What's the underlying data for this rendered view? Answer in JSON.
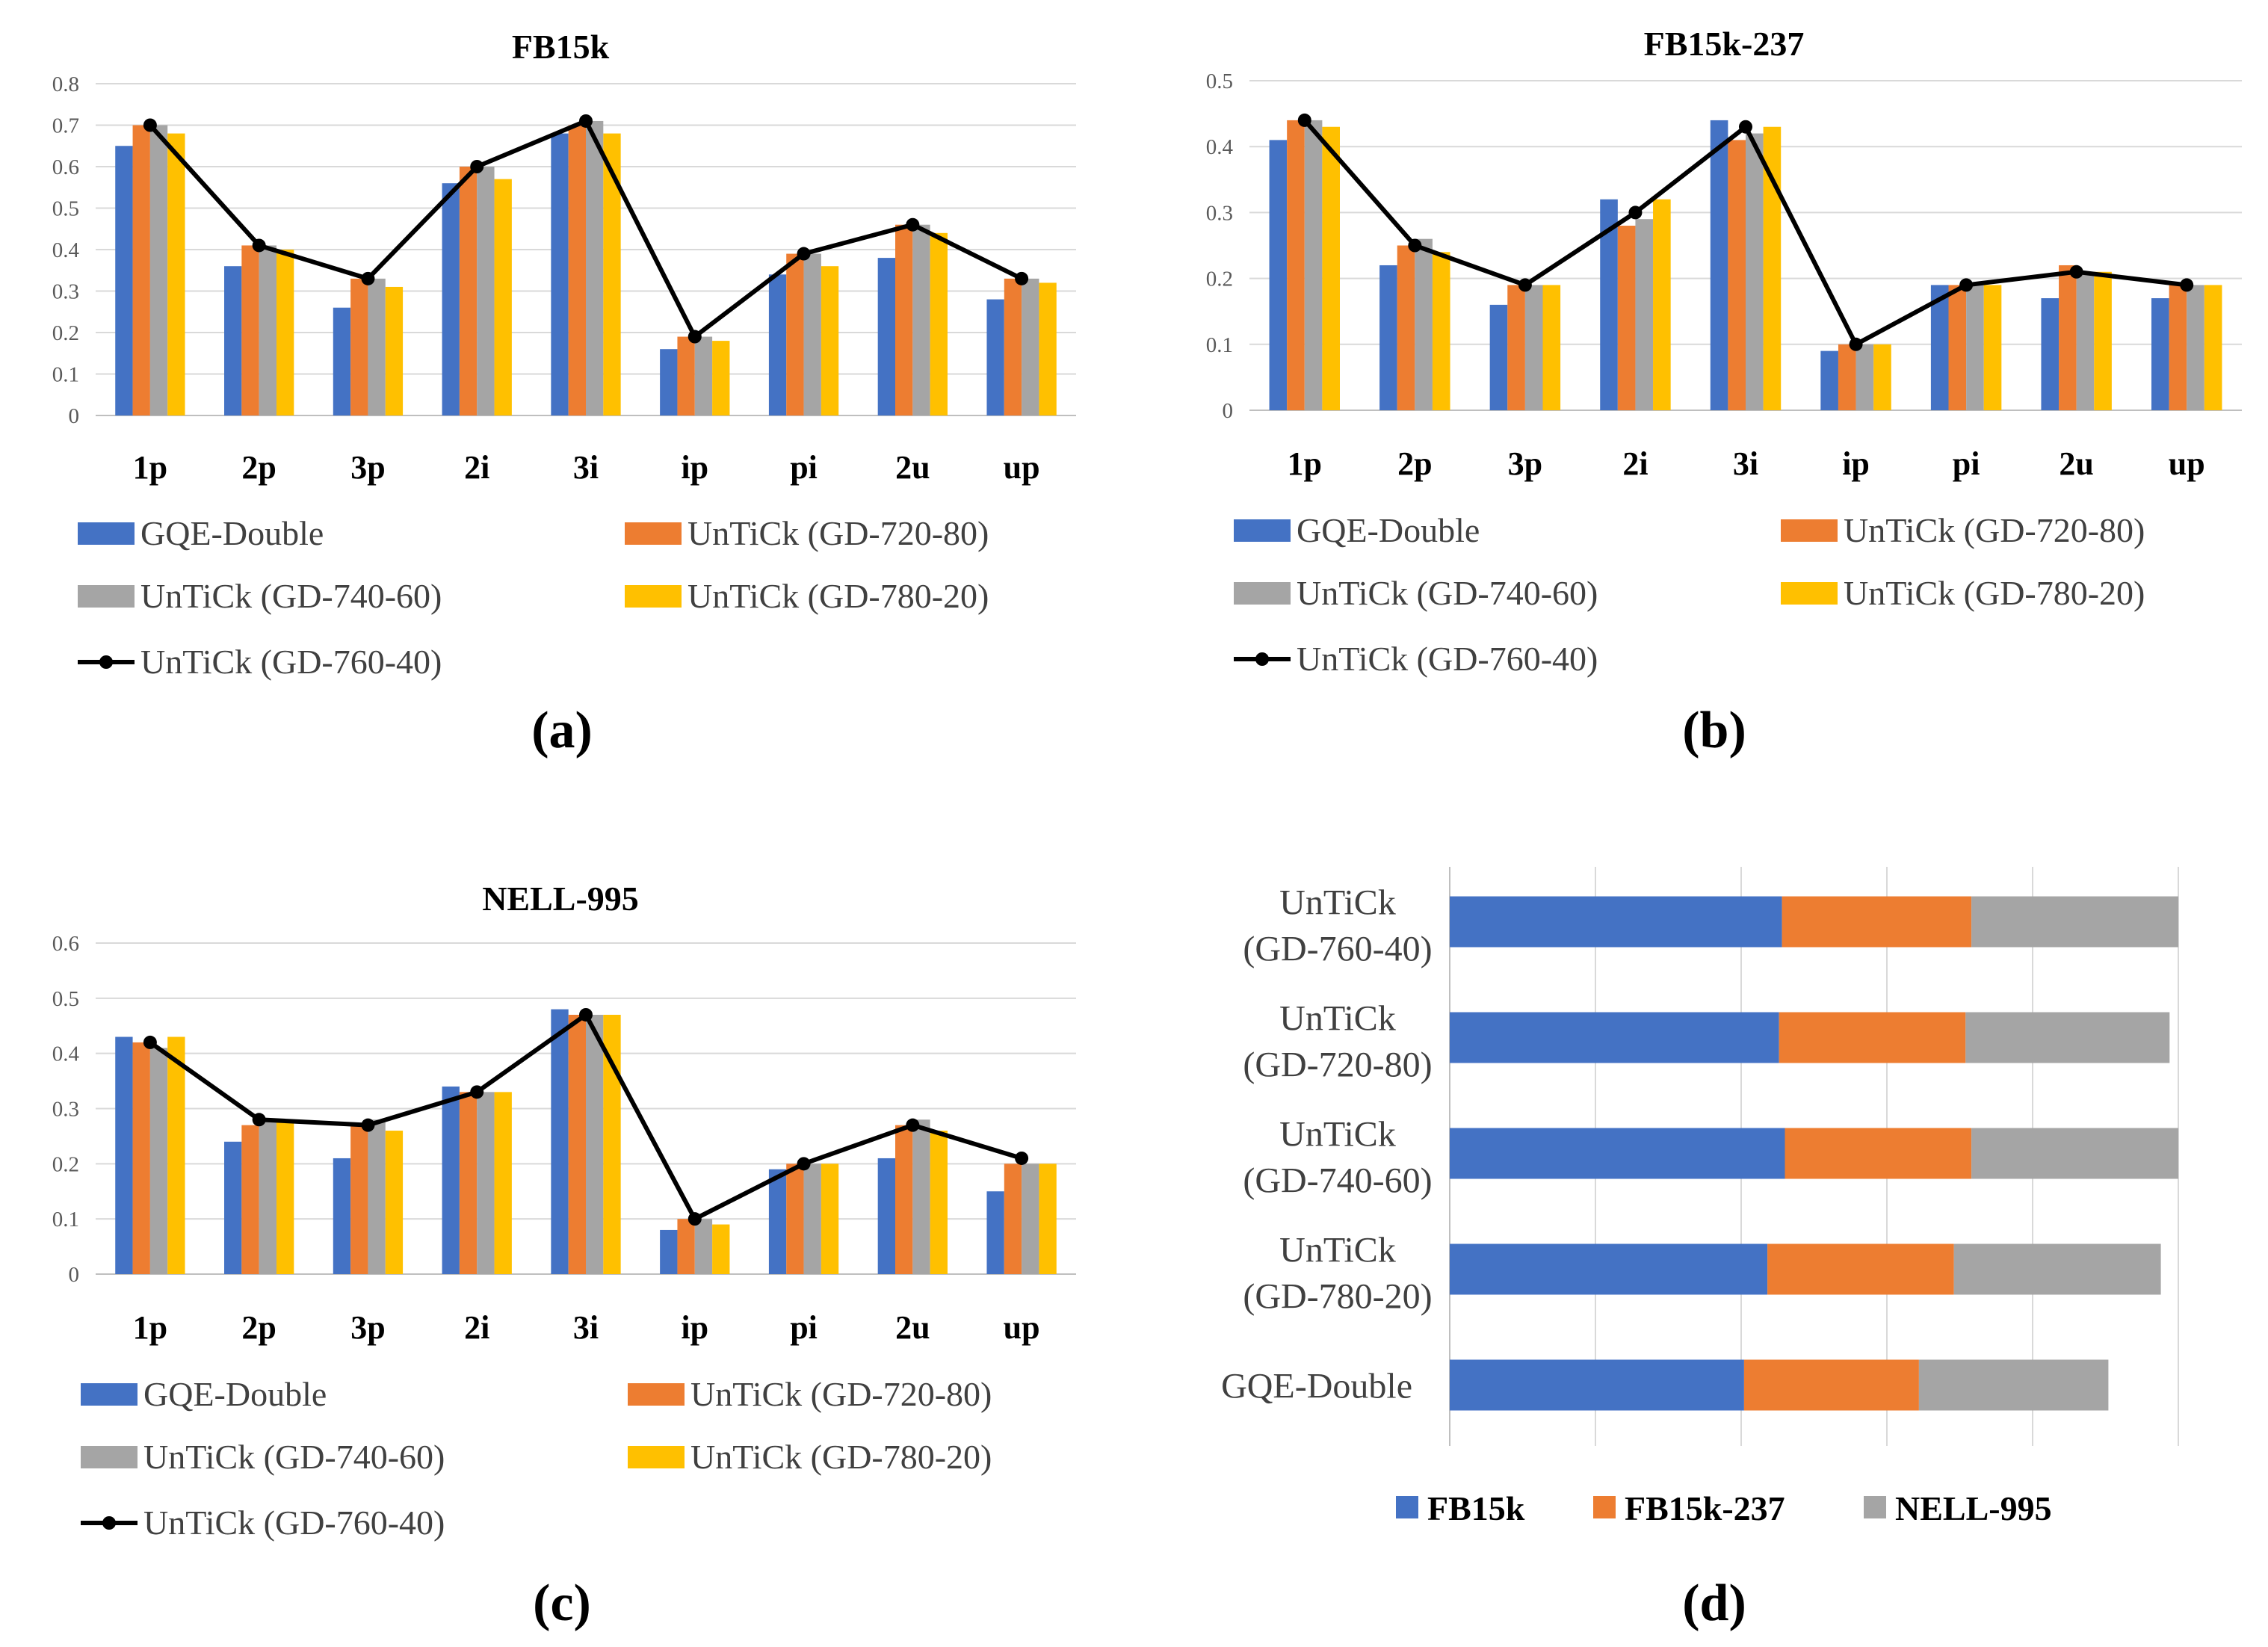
{
  "colors": {
    "gqe": "#4472C4",
    "g72080": "#ED7D31",
    "g74060": "#A5A5A5",
    "g78020": "#FFC000",
    "g76040": "#000000",
    "fb15k": "#4472C4",
    "fb15k237": "#ED7D31",
    "nell": "#A5A5A5",
    "grid": "#D9D9D9",
    "axis": "#BFBFBF"
  },
  "chart_data": [
    {
      "type": "bar",
      "panel": "(a)",
      "title": "FB15k",
      "categories": [
        "1p",
        "2p",
        "3p",
        "2i",
        "3i",
        "ip",
        "pi",
        "2u",
        "up"
      ],
      "ylim": [
        0,
        0.8
      ],
      "yticks": [
        "0",
        "0.1",
        "0.2",
        "0.3",
        "0.4",
        "0.5",
        "0.6",
        "0.7",
        "0.8"
      ],
      "series": [
        {
          "name": "GQE-Double",
          "values": [
            0.65,
            0.36,
            0.26,
            0.56,
            0.68,
            0.16,
            0.34,
            0.38,
            0.28
          ]
        },
        {
          "name": "UnTiCk (GD-720-80)",
          "values": [
            0.7,
            0.41,
            0.33,
            0.6,
            0.7,
            0.19,
            0.39,
            0.46,
            0.33
          ]
        },
        {
          "name": "UnTiCk (GD-740-60)",
          "values": [
            0.7,
            0.41,
            0.33,
            0.6,
            0.71,
            0.19,
            0.39,
            0.46,
            0.33
          ]
        },
        {
          "name": "UnTiCk (GD-780-20)",
          "values": [
            0.68,
            0.4,
            0.31,
            0.57,
            0.68,
            0.18,
            0.36,
            0.44,
            0.32
          ]
        }
      ],
      "line": {
        "name": "UnTiCk (GD-760-40)",
        "values": [
          0.7,
          0.41,
          0.33,
          0.6,
          0.71,
          0.19,
          0.39,
          0.46,
          0.33
        ]
      }
    },
    {
      "type": "bar",
      "panel": "(b)",
      "title": "FB15k-237",
      "categories": [
        "1p",
        "2p",
        "3p",
        "2i",
        "3i",
        "ip",
        "pi",
        "2u",
        "up"
      ],
      "ylim": [
        0,
        0.5
      ],
      "yticks": [
        "0",
        "0.1",
        "0.2",
        "0.3",
        "0.4",
        "0.5"
      ],
      "series": [
        {
          "name": "GQE-Double",
          "values": [
            0.41,
            0.22,
            0.16,
            0.32,
            0.44,
            0.09,
            0.19,
            0.17,
            0.17
          ]
        },
        {
          "name": "UnTiCk (GD-720-80)",
          "values": [
            0.44,
            0.25,
            0.19,
            0.28,
            0.41,
            0.1,
            0.19,
            0.22,
            0.19
          ]
        },
        {
          "name": "UnTiCk (GD-740-60)",
          "values": [
            0.44,
            0.26,
            0.19,
            0.29,
            0.42,
            0.1,
            0.19,
            0.21,
            0.19
          ]
        },
        {
          "name": "UnTiCk (GD-780-20)",
          "values": [
            0.43,
            0.24,
            0.19,
            0.32,
            0.43,
            0.1,
            0.19,
            0.21,
            0.19
          ]
        }
      ],
      "line": {
        "name": "UnTiCk (GD-760-40)",
        "values": [
          0.44,
          0.25,
          0.19,
          0.3,
          0.43,
          0.1,
          0.19,
          0.21,
          0.19
        ]
      }
    },
    {
      "type": "bar",
      "panel": "(c)",
      "title": "NELL-995",
      "categories": [
        "1p",
        "2p",
        "3p",
        "2i",
        "3i",
        "ip",
        "pi",
        "2u",
        "up"
      ],
      "ylim": [
        0,
        0.6
      ],
      "yticks": [
        "0",
        "0.1",
        "0.2",
        "0.3",
        "0.4",
        "0.5",
        "0.6"
      ],
      "series": [
        {
          "name": "GQE-Double",
          "values": [
            0.43,
            0.24,
            0.21,
            0.34,
            0.48,
            0.08,
            0.19,
            0.21,
            0.15
          ]
        },
        {
          "name": "UnTiCk (GD-720-80)",
          "values": [
            0.42,
            0.27,
            0.27,
            0.33,
            0.47,
            0.1,
            0.2,
            0.27,
            0.2
          ]
        },
        {
          "name": "UnTiCk (GD-740-60)",
          "values": [
            0.41,
            0.28,
            0.28,
            0.33,
            0.47,
            0.1,
            0.2,
            0.28,
            0.2
          ]
        },
        {
          "name": "UnTiCk (GD-780-20)",
          "values": [
            0.43,
            0.28,
            0.26,
            0.33,
            0.47,
            0.09,
            0.2,
            0.26,
            0.2
          ]
        }
      ],
      "line": {
        "name": "UnTiCk (GD-760-40)",
        "values": [
          0.42,
          0.28,
          0.27,
          0.33,
          0.47,
          0.1,
          0.2,
          0.27,
          0.21
        ]
      }
    },
    {
      "type": "bar",
      "orientation": "horizontal-stacked",
      "panel": "(d)",
      "title": "",
      "categories": [
        [
          "UnTiCk",
          "(GD-760-40)"
        ],
        [
          "UnTiCk",
          "(GD-720-80)"
        ],
        [
          "UnTiCk",
          "(GD-740-60)"
        ],
        [
          "UnTiCk",
          "(GD-780-20)"
        ],
        [
          "GQE-Double"
        ]
      ],
      "xlim": [
        0,
        2.5
      ],
      "series": [
        {
          "name": "FB15k",
          "values": [
            1.14,
            1.13,
            1.15,
            1.09,
            1.01
          ]
        },
        {
          "name": "FB15k-237",
          "values": [
            0.65,
            0.64,
            0.64,
            0.64,
            0.6
          ]
        },
        {
          "name": "NELL-995",
          "values": [
            0.71,
            0.7,
            0.71,
            0.71,
            0.65
          ]
        }
      ]
    }
  ]
}
